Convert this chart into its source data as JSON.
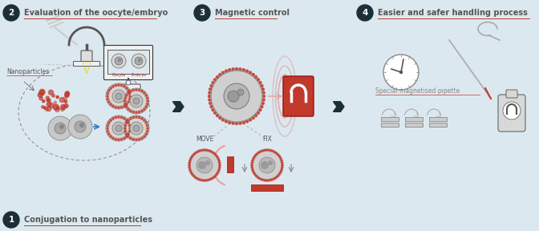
{
  "bg_color": "#dce8ef",
  "dark_color": "#1c2f38",
  "red_color": "#c0392b",
  "red_light": "#e8a0a0",
  "red_mid": "#d96060",
  "gray_text": "#555555",
  "gray_line": "#999999",
  "gray_light": "#bbbbbb",
  "white": "#ffffff",
  "title_fontsize": 7.0,
  "small_fontsize": 5.5,
  "tiny_fontsize": 4.5,
  "step1_label": "Conjugation to nanoparticles",
  "step2_label": "Evaluation of the oocyte/embryo",
  "step3_label": "Magnetic control",
  "step4_label": "Easier and safer handling process",
  "move_label": "MOVE",
  "fix_label": "FIX",
  "nanoparticles_label": "Nanoparticles",
  "special_pipette_label": "Special magnetised pipette",
  "oocyte_label": "Oocyte",
  "embryo_label": "Embryo"
}
